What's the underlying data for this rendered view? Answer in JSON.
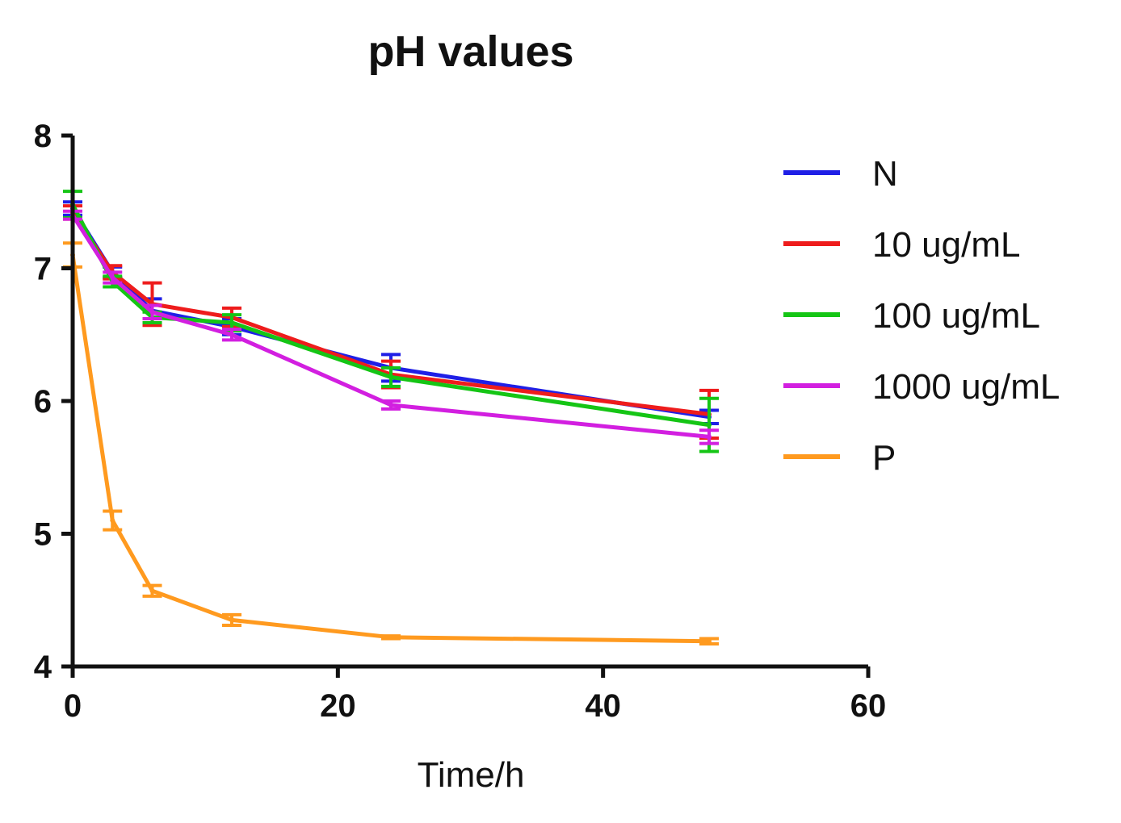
{
  "chart_data": {
    "type": "line",
    "title": "pH values",
    "xlabel": "Time/h",
    "ylabel": "",
    "xlim": [
      0,
      60
    ],
    "ylim": [
      4,
      8
    ],
    "x_ticks": [
      0,
      20,
      40,
      60
    ],
    "y_ticks": [
      4,
      5,
      6,
      7,
      8
    ],
    "x_tick_labels": [
      "0",
      "20",
      "40",
      "60"
    ],
    "y_tick_labels": [
      "4",
      "5",
      "6",
      "7",
      "8"
    ],
    "grid": false,
    "legend_position": "right",
    "x": [
      0,
      3,
      6,
      12,
      24,
      48
    ],
    "series": [
      {
        "name": "N",
        "color": "#1f1fe6",
        "values": [
          7.45,
          6.97,
          6.68,
          6.56,
          6.25,
          5.88
        ],
        "errors": [
          0.05,
          0.04,
          0.09,
          0.06,
          0.1,
          0.05
        ]
      },
      {
        "name": "10 ug/mL",
        "color": "#ee1c1c",
        "values": [
          7.42,
          6.97,
          6.73,
          6.63,
          6.2,
          5.9
        ],
        "errors": [
          0.05,
          0.05,
          0.16,
          0.07,
          0.1,
          0.18
        ]
      },
      {
        "name": "100 ug/mL",
        "color": "#15c515",
        "values": [
          7.48,
          6.9,
          6.63,
          6.59,
          6.18,
          5.82
        ],
        "errors": [
          0.1,
          0.04,
          0.04,
          0.06,
          0.07,
          0.2
        ]
      },
      {
        "name": "1000 ug/mL",
        "color": "#d21fe0",
        "values": [
          7.4,
          6.93,
          6.67,
          6.5,
          5.97,
          5.73
        ],
        "errors": [
          0.03,
          0.04,
          0.05,
          0.04,
          0.03,
          0.05
        ]
      },
      {
        "name": "P",
        "color": "#ff9a1f",
        "values": [
          7.1,
          5.1,
          4.57,
          4.35,
          4.22,
          4.19
        ],
        "errors": [
          0.09,
          0.07,
          0.04,
          0.04,
          0.01,
          0.02
        ]
      }
    ]
  }
}
